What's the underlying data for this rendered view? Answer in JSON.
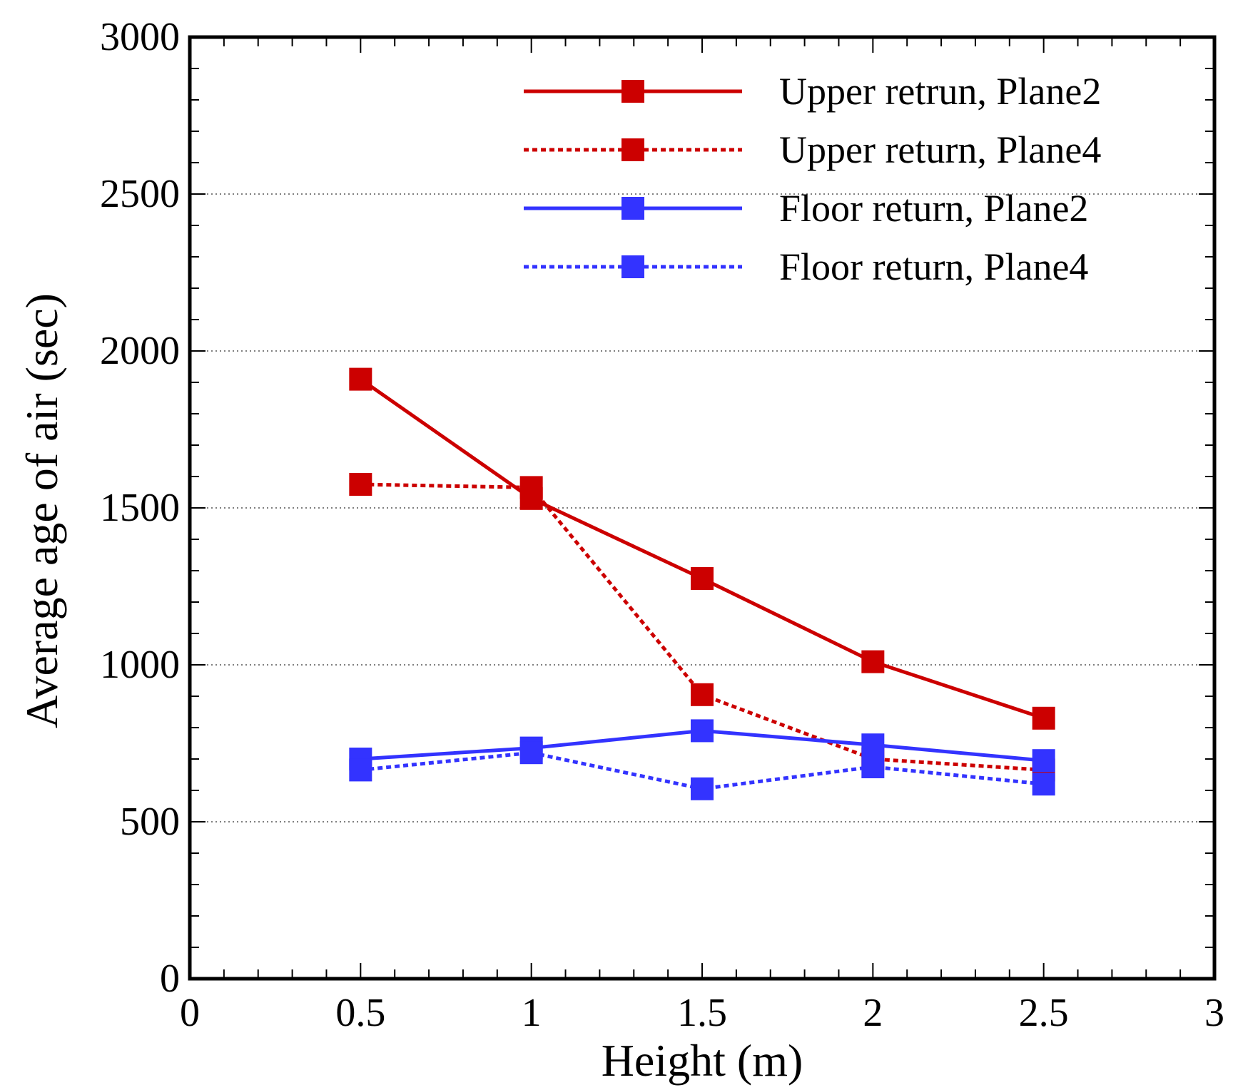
{
  "chart_data": {
    "type": "line",
    "title": "",
    "xlabel": "Height (m)",
    "ylabel": "Average age of air (sec)",
    "xlim": [
      0,
      3
    ],
    "ylim": [
      0,
      3000
    ],
    "xticks": [
      0,
      0.5,
      1,
      1.5,
      2,
      2.5,
      3
    ],
    "xtick_labels": [
      "0",
      "0.5",
      "1",
      "1.5",
      "2",
      "2.5",
      "3"
    ],
    "yticks": [
      0,
      500,
      1000,
      1500,
      2000,
      2500,
      3000
    ],
    "ytick_labels": [
      "0",
      "500",
      "1000",
      "1500",
      "2000",
      "2500",
      "3000"
    ],
    "grid": "horizontal dotted",
    "legend_position": "top-right",
    "series": [
      {
        "name": "Upper retrun, Plane2",
        "color": "#cc0000",
        "style": "solid",
        "marker": "square",
        "x": [
          0.5,
          1,
          1.5,
          2,
          2.5
        ],
        "y": [
          1910,
          1530,
          1275,
          1010,
          830
        ]
      },
      {
        "name": "Upper return, Plane4",
        "color": "#cc0000",
        "style": "dotted",
        "marker": "square",
        "x": [
          0.5,
          1,
          1.5,
          2,
          2.5
        ],
        "y": [
          1575,
          1565,
          905,
          700,
          665
        ]
      },
      {
        "name": "Floor return, Plane2",
        "color": "#3333ff",
        "style": "solid",
        "marker": "square",
        "x": [
          0.5,
          1,
          1.5,
          2,
          2.5
        ],
        "y": [
          700,
          735,
          790,
          745,
          695
        ]
      },
      {
        "name": "Floor return, Plane4",
        "color": "#3333ff",
        "style": "dotted",
        "marker": "square",
        "x": [
          0.5,
          1,
          1.5,
          2,
          2.5
        ],
        "y": [
          665,
          720,
          605,
          675,
          620
        ]
      }
    ]
  }
}
